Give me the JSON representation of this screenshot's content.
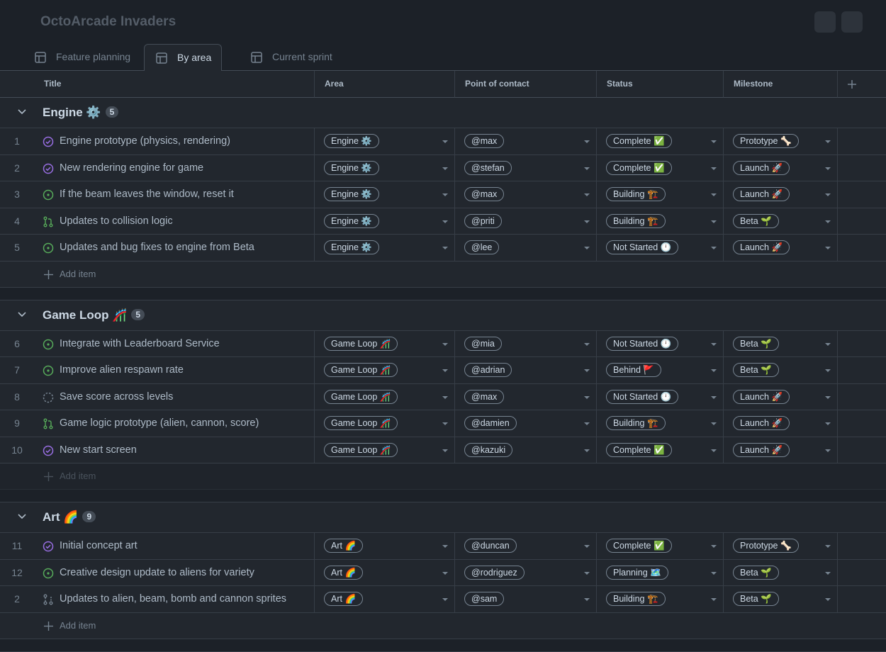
{
  "header": {
    "title": "OctoArcade Invaders"
  },
  "tabs": {
    "items": [
      "Feature planning",
      "By area",
      "Current sprint"
    ],
    "active": 1
  },
  "columns": [
    "Title",
    "Area",
    "Point of contact",
    "Status",
    "Milestone"
  ],
  "add_item": "Add item",
  "groups": [
    {
      "name": "Engine ⚙️",
      "count": 5,
      "items": [
        {
          "number": 1,
          "state": "done",
          "title": "Engine prototype (physics, rendering)",
          "area": "Engine ⚙️",
          "contact": "@max",
          "status": "Complete ✅",
          "milestone": "Prototype 🦴"
        },
        {
          "number": 2,
          "state": "done",
          "title": "New rendering engine for game",
          "area": "Engine ⚙️",
          "contact": "@stefan",
          "status": "Complete ✅",
          "milestone": "Launch 🚀"
        },
        {
          "number": 3,
          "state": "open",
          "title": "If the beam leaves the window, reset it",
          "area": "Engine ⚙️",
          "contact": "@max",
          "status": "Building 🏗️",
          "milestone": "Launch 🚀"
        },
        {
          "number": 4,
          "state": "pr",
          "title": "Updates to collision logic",
          "area": "Engine ⚙️",
          "contact": "@priti",
          "status": "Building 🏗️",
          "milestone": "Beta 🌱"
        },
        {
          "number": 5,
          "state": "open",
          "title": "Updates and bug fixes to engine from Beta",
          "area": "Engine ⚙️",
          "contact": "@lee",
          "status": "Not Started 🕛",
          "milestone": "Launch 🚀"
        }
      ]
    },
    {
      "name": "Game Loop 🎢",
      "count": 5,
      "items": [
        {
          "number": 6,
          "state": "open",
          "title": "Integrate with Leaderboard Service",
          "area": "Game Loop 🎢",
          "contact": "@mia",
          "status": "Not Started 🕛",
          "milestone": "Beta 🌱"
        },
        {
          "number": 7,
          "state": "open",
          "title": "Improve alien respawn rate",
          "area": "Game Loop 🎢",
          "contact": "@adrian",
          "status": "Behind 🚩",
          "milestone": "Beta 🌱"
        },
        {
          "number": 8,
          "state": "draft",
          "title": "Save score across levels",
          "area": "Game Loop 🎢",
          "contact": "@max",
          "status": "Not Started 🕛",
          "milestone": "Launch 🚀"
        },
        {
          "number": 9,
          "state": "pr",
          "title": "Game logic prototype (alien, cannon, score)",
          "area": "Game Loop 🎢",
          "contact": "@damien",
          "status": "Building 🏗️",
          "milestone": "Launch 🚀"
        },
        {
          "number": 10,
          "state": "done",
          "title": "New start screen",
          "area": "Game Loop 🎢",
          "contact": "@kazuki",
          "status": "Complete ✅",
          "milestone": "Launch 🚀"
        }
      ]
    },
    {
      "name": "Art 🌈",
      "count": 9,
      "items": [
        {
          "number": 11,
          "state": "done",
          "title": "Initial concept art",
          "area": "Art 🌈",
          "contact": "@duncan",
          "status": "Complete ✅",
          "milestone": "Prototype 🦴"
        },
        {
          "number": 12,
          "state": "open",
          "title": "Creative design update to aliens for variety",
          "area": "Art 🌈",
          "contact": "@rodriguez",
          "status": "Planning 🗺️",
          "milestone": "Beta 🌱"
        },
        {
          "number": 2,
          "state": "pr-draft",
          "title": "Updates to alien, beam, bomb and cannon sprites",
          "area": "Art 🌈",
          "contact": "@sam",
          "status": "Building 🏗️",
          "milestone": "Beta 🌱"
        }
      ]
    }
  ]
}
